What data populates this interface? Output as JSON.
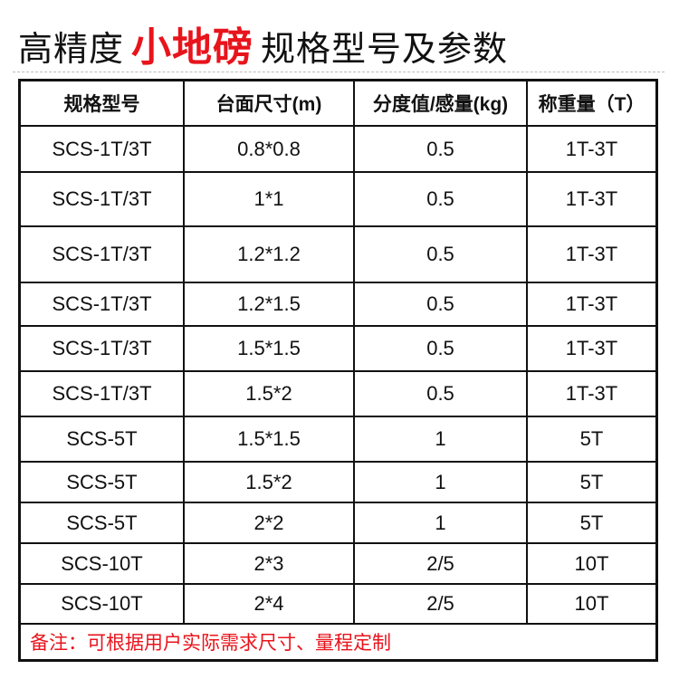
{
  "title": {
    "prefix": "高精度",
    "highlight": "小地磅",
    "suffix": "规格型号及参数"
  },
  "colors": {
    "highlight": "#e8141c",
    "text": "#111111"
  },
  "table": {
    "headers": [
      "规格型号",
      "台面尺寸(m)",
      "分度值/感量(kg)",
      "称重量（T）"
    ],
    "rows": [
      [
        "SCS-1T/3T",
        "0.8*0.8",
        "0.5",
        "1T-3T"
      ],
      [
        "SCS-1T/3T",
        "1*1",
        "0.5",
        "1T-3T"
      ],
      [
        "SCS-1T/3T",
        "1.2*1.2",
        "0.5",
        "1T-3T"
      ],
      [
        "SCS-1T/3T",
        "1.2*1.5",
        "0.5",
        "1T-3T"
      ],
      [
        "SCS-1T/3T",
        "1.5*1.5",
        "0.5",
        "1T-3T"
      ],
      [
        "SCS-1T/3T",
        "1.5*2",
        "0.5",
        "1T-3T"
      ],
      [
        "SCS-5T",
        "1.5*1.5",
        "1",
        "5T"
      ],
      [
        "SCS-5T",
        "1.5*2",
        "1",
        "5T"
      ],
      [
        "SCS-5T",
        "2*2",
        "1",
        "5T"
      ],
      [
        "SCS-10T",
        "2*3",
        "2/5",
        "10T"
      ],
      [
        "SCS-10T",
        "2*4",
        "2/5",
        "10T"
      ]
    ],
    "note": "备注：可根据用户实际需求尺寸、量程定制"
  }
}
